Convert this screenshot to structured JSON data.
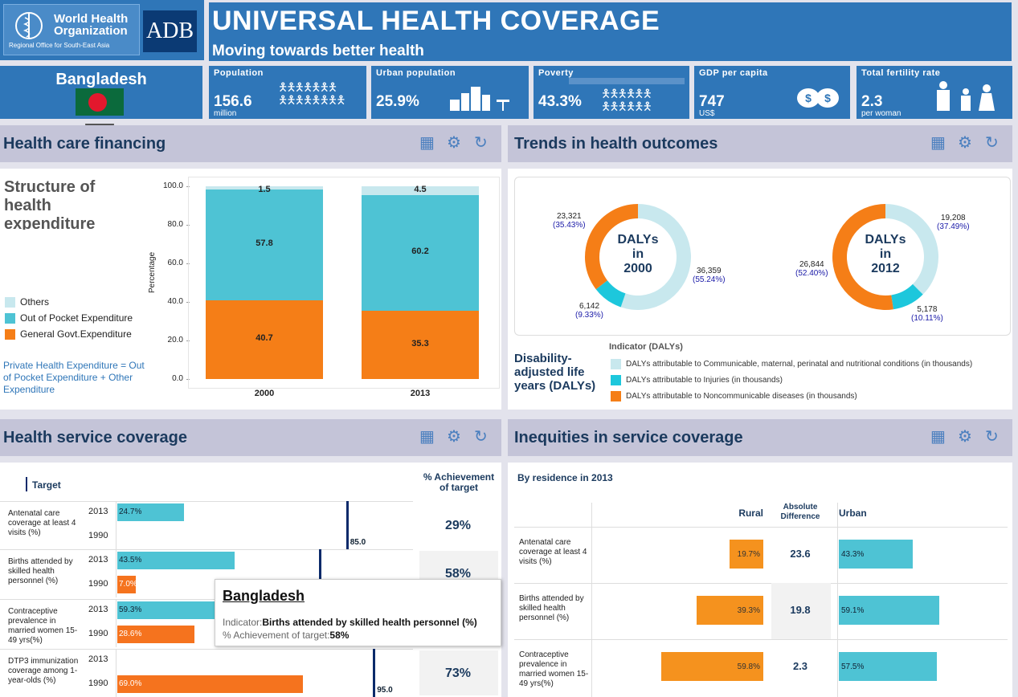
{
  "logos": {
    "who_line1": "World Health",
    "who_line2": "Organization",
    "who_sub": "Regional Office for South-East Asia",
    "adb": "ADB"
  },
  "header": {
    "title": "UNIVERSAL HEALTH COVERAGE",
    "subtitle": "Moving towards better health"
  },
  "country": "Bangladesh",
  "stats": [
    {
      "label": "Population",
      "value": "156.6",
      "unit": "million",
      "icon": "people-icon"
    },
    {
      "label": "Urban population",
      "value": "25.9%",
      "unit": "",
      "icon": "city-icon"
    },
    {
      "label": "Poverty",
      "value": "43.3%",
      "unit": "",
      "icon": "poverty-people-icon"
    },
    {
      "label": "GDP per capita",
      "value": "747",
      "unit": "US$",
      "icon": "coins-icon"
    },
    {
      "label": "Total fertility rate",
      "value": "2.3",
      "unit": "per woman",
      "icon": "family-icon"
    }
  ],
  "panels": {
    "financing": "Health care financing",
    "trends": "Trends in health outcomes",
    "service": "Health service coverage",
    "inequities": "Inequities in service coverage"
  },
  "financing": {
    "subtitle": "Structure of health expenditure",
    "legend": [
      "Others",
      "Out of Pocket Expenditure",
      "General Govt.Expenditure"
    ],
    "note": "Private Health Expenditure = Out of Pocket Expenditure + Other Expenditure",
    "ylabel": "Percentage",
    "yticks": [
      "100.0",
      "80.0",
      "60.0",
      "40.0",
      "20.0",
      "0.0"
    ],
    "colors": {
      "others": "#c8e8ee",
      "oop": "#4ec3d4",
      "govt": "#f57e17"
    }
  },
  "chart_data": {
    "type": "bar",
    "categories": [
      "2000",
      "2013"
    ],
    "series": [
      {
        "name": "General Govt.Expenditure",
        "values": [
          40.7,
          35.3
        ]
      },
      {
        "name": "Out of Pocket Expenditure",
        "values": [
          57.8,
          60.2
        ]
      },
      {
        "name": "Others",
        "values": [
          1.5,
          4.5
        ]
      }
    ],
    "ylabel": "Percentage",
    "ylim": [
      0,
      100
    ]
  },
  "dalys": {
    "y2000": {
      "center": [
        "DALYs",
        "in",
        "2000"
      ],
      "comm": "36,359",
      "comm_pct": "(55.24%)",
      "inj": "6,142",
      "inj_pct": "(9.33%)",
      "ncd": "23,321",
      "ncd_pct": "(35.43%)",
      "values": [
        55.24,
        9.33,
        35.43
      ]
    },
    "y2012": {
      "center": [
        "DALYs",
        "in",
        "2012"
      ],
      "comm": "19,208",
      "comm_pct": "(37.49%)",
      "inj": "5,178",
      "inj_pct": "(10.11%)",
      "ncd": "26,844",
      "ncd_pct": "(52.40%)",
      "values": [
        37.49,
        10.11,
        52.4
      ]
    },
    "side_title": "Disability-adjusted life years (DALYs)",
    "legend_title": "Indicator (DALYs)",
    "legend": [
      "DALYs attributable to Communicable, maternal, perinatal and nutritional conditions (in thousands)",
      "DALYs attributable to Injuries (in thousands)",
      "DALYs attributable to Noncommunicable diseases (in thousands)"
    ]
  },
  "service": {
    "target_label": "Target",
    "achievement_header": "% Achievement of target",
    "rows": [
      {
        "label": "Antenatal care coverage at least 4 visits (%)",
        "v2013": "24.7%",
        "v1990": "",
        "target": "85.0",
        "achievement": "29%",
        "n2013": 24.7,
        "n1990": 0,
        "ntarget": 85
      },
      {
        "label": "Births attended by skilled health personnel (%)",
        "v2013": "43.5%",
        "v1990": "7.0%",
        "target": "",
        "achievement": "58%",
        "n2013": 43.5,
        "n1990": 7.0,
        "ntarget": 75
      },
      {
        "label": "Contraceptive prevalence in married women 15-49 yrs(%)",
        "v2013": "59.3%",
        "v1990": "28.6%",
        "target": "",
        "achievement": "",
        "n2013": 59.3,
        "n1990": 28.6,
        "ntarget": 0
      },
      {
        "label": "DTP3 immunization coverage among 1-year-olds  (%)",
        "v2013": "",
        "v1990": "69.0%",
        "target": "95.0",
        "achievement": "73%",
        "n2013": 0,
        "n1990": 69.0,
        "ntarget": 95
      }
    ],
    "years": [
      "2013",
      "1990"
    ]
  },
  "tooltip": {
    "title": "Bangladesh",
    "indicator_label": "Indicator:",
    "indicator": "Births attended by skilled health personnel (%)",
    "achv_label": "% Achievement of target:",
    "achv": "58%"
  },
  "inequities": {
    "subtitle": "By residence in 2013",
    "rural": "Rural",
    "abs": "Absolute Difference",
    "urban": "Urban",
    "rows": [
      {
        "label": "Antenatal care coverage at least 4 visits (%)",
        "rural": "19.7%",
        "diff": "23.6",
        "urban": "43.3%",
        "nr": 19.7,
        "nu": 43.3
      },
      {
        "label": "Births attended by skilled health personnel (%)",
        "rural": "39.3%",
        "diff": "19.8",
        "urban": "59.1%",
        "nr": 39.3,
        "nu": 59.1
      },
      {
        "label": "Contraceptive prevalence in married women 15-49 yrs(%)",
        "rural": "59.8%",
        "diff": "2.3",
        "urban": "57.5%",
        "nr": 59.8,
        "nu": 57.5
      }
    ]
  }
}
